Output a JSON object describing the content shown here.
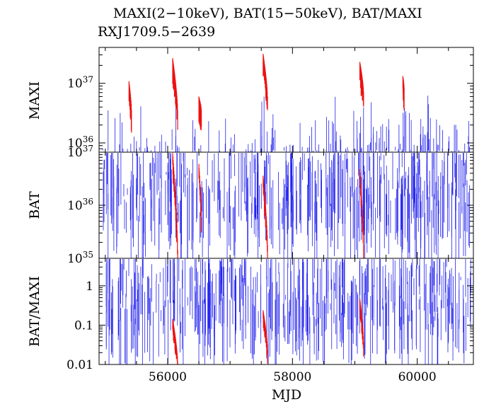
{
  "chart_data": {
    "type": "scatter",
    "title": "MAXI(2−10keV), BAT(15−50keV), BAT/MAXI",
    "subtitle": "RXJ1709.5−2639",
    "xlabel": "MJD",
    "xlim": [
      54900,
      60900
    ],
    "x_ticks": [
      {
        "value": 56000,
        "label": "56000"
      },
      {
        "value": 58000,
        "label": "58000"
      },
      {
        "value": 60000,
        "label": "60000"
      }
    ],
    "colors": {
      "quiescent": "#2222ee",
      "outburst": "#ee1111"
    },
    "panels": [
      {
        "ylabel": "MAXI",
        "scale": "log",
        "ylim": [
          7e+35,
          4e+37
        ],
        "y_ticks": [
          {
            "value": 1e+36,
            "mant": "10",
            "exp": "36"
          },
          {
            "value": 1e+37,
            "mant": "10",
            "exp": "37"
          }
        ],
        "outbursts": [
          {
            "start": 55380,
            "end": 55420,
            "peak": 9e+36,
            "low": 3e+36
          },
          {
            "start": 56080,
            "end": 56160,
            "peak": 2.2e+37,
            "low": 3e+36
          },
          {
            "start": 56500,
            "end": 56540,
            "peak": 5e+36,
            "low": 3e+36
          },
          {
            "start": 57530,
            "end": 57600,
            "peak": 2.6e+37,
            "low": 5e+36
          },
          {
            "start": 59080,
            "end": 59140,
            "peak": 1.9e+37,
            "low": 6e+36
          },
          {
            "start": 59770,
            "end": 59790,
            "peak": 1.1e+37,
            "low": 7e+36
          }
        ]
      },
      {
        "ylabel": "BAT",
        "scale": "log",
        "ylim": [
          1e+35,
          1e+37
        ],
        "y_ticks": [
          {
            "value": 1e+35,
            "mant": "10",
            "exp": "35"
          },
          {
            "value": 1e+36,
            "mant": "10",
            "exp": "36"
          },
          {
            "value": 1e+37,
            "mant": "10",
            "exp": "37"
          }
        ],
        "outbursts": [
          {
            "start": 56080,
            "end": 56160,
            "peak": 8e+36,
            "low": 1.2e+35
          },
          {
            "start": 56500,
            "end": 56540,
            "peak": 5e+36,
            "low": 5e+35
          },
          {
            "start": 57530,
            "end": 57600,
            "peak": 3e+36,
            "low": 1.5e+35
          },
          {
            "start": 59080,
            "end": 59140,
            "peak": 4e+36,
            "low": 1.5e+35
          }
        ]
      },
      {
        "ylabel": "BAT/MAXI",
        "scale": "log",
        "ylim": [
          0.01,
          5
        ],
        "y_ticks": [
          {
            "value": 0.01,
            "label": "0.01"
          },
          {
            "value": 0.1,
            "label": "0.1"
          },
          {
            "value": 1,
            "label": "1"
          }
        ],
        "outbursts": [
          {
            "start": 56080,
            "end": 56160,
            "peak": 0.12,
            "low": 0.01
          },
          {
            "start": 57530,
            "end": 57600,
            "peak": 0.2,
            "low": 0.02
          },
          {
            "start": 59080,
            "end": 59140,
            "peak": 0.4,
            "low": 0.03
          }
        ]
      }
    ]
  }
}
